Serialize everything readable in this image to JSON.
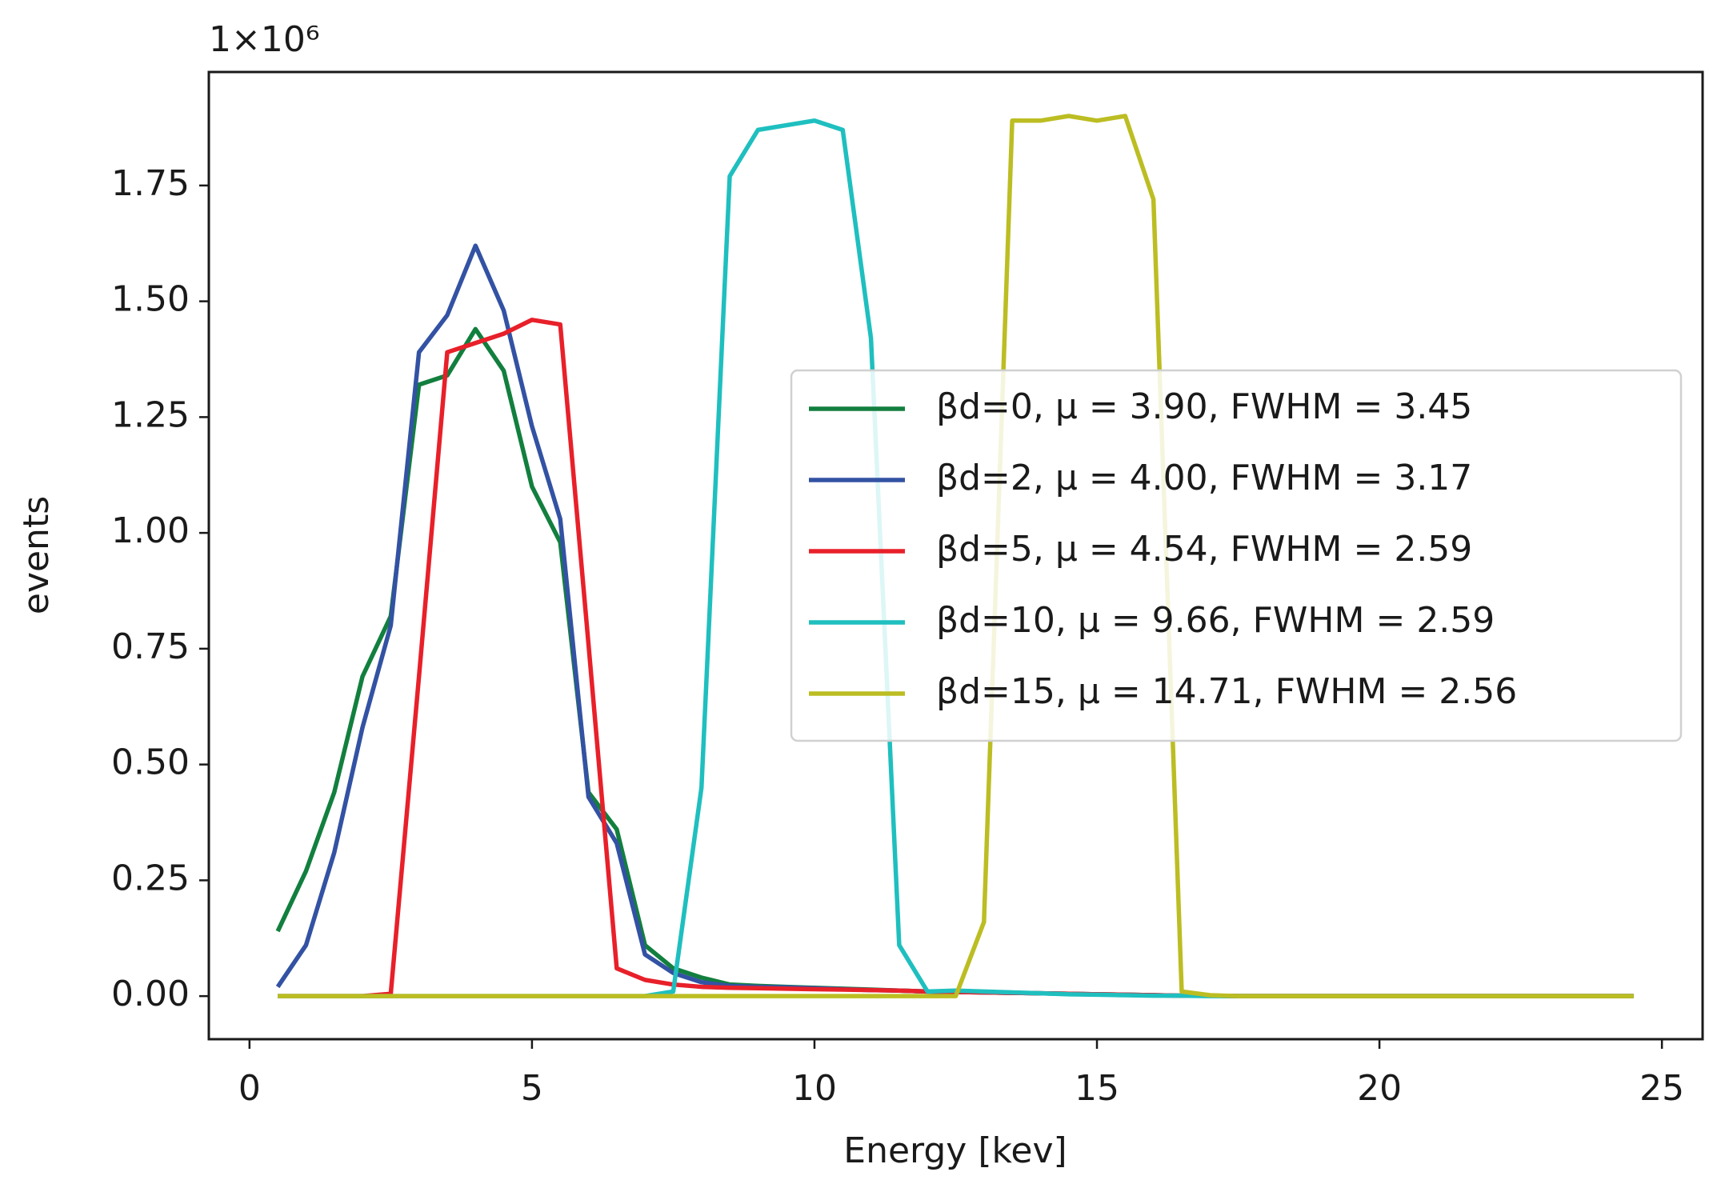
{
  "chart_data": {
    "type": "line",
    "xlabel": "Energy [kev]",
    "ylabel": "events",
    "offset_text": "1×10⁶",
    "x": [
      0.5,
      1,
      1.5,
      2,
      2.5,
      3,
      3.5,
      4,
      4.5,
      5,
      5.5,
      6,
      6.5,
      7,
      7.5,
      8,
      8.5,
      9,
      9.5,
      10,
      10.5,
      11,
      11.5,
      12,
      12.5,
      13,
      13.5,
      14,
      14.5,
      15,
      15.5,
      16,
      16.5,
      17,
      17.5,
      18,
      18.5,
      19,
      19.5,
      20,
      20.5,
      21,
      21.5,
      22,
      22.5,
      23,
      23.5,
      24,
      24.5
    ],
    "series": [
      {
        "name": "βd=0, μ = 3.90, FWHM = 3.45",
        "color": "#127f3e",
        "values": [
          0.14,
          0.27,
          0.44,
          0.69,
          0.82,
          1.32,
          1.34,
          1.44,
          1.35,
          1.1,
          0.98,
          0.44,
          0.36,
          0.11,
          0.06,
          0.04,
          0.025,
          0.022,
          0.02,
          0.018,
          0.016,
          0.014,
          0.012,
          0.01,
          0.009,
          0.008,
          0.007,
          0.006,
          0.005,
          0.004,
          0.003,
          0.002,
          0.001,
          0.001,
          0,
          0,
          0,
          0,
          0,
          0,
          0,
          0,
          0,
          0,
          0,
          0,
          0,
          0,
          0
        ]
      },
      {
        "name": "βd=2, μ = 4.00, FWHM = 3.17",
        "color": "#3352a3",
        "values": [
          0.02,
          0.11,
          0.31,
          0.58,
          0.8,
          1.39,
          1.47,
          1.62,
          1.48,
          1.23,
          1.03,
          0.43,
          0.33,
          0.09,
          0.05,
          0.03,
          0.022,
          0.02,
          0.019,
          0.017,
          0.015,
          0.013,
          0.012,
          0.01,
          0.009,
          0.008,
          0.007,
          0.006,
          0.005,
          0.004,
          0.003,
          0.002,
          0.001,
          0.001,
          0,
          0,
          0,
          0,
          0,
          0,
          0,
          0,
          0,
          0,
          0,
          0,
          0,
          0,
          0
        ]
      },
      {
        "name": "βd=5, μ = 4.54, FWHM = 2.59",
        "color": "#e8202a",
        "values": [
          0,
          0,
          0,
          0,
          0.005,
          0.69,
          1.39,
          1.41,
          1.43,
          1.46,
          1.45,
          0.76,
          0.06,
          0.035,
          0.025,
          0.02,
          0.018,
          0.017,
          0.016,
          0.015,
          0.014,
          0.013,
          0.012,
          0.01,
          0.009,
          0.008,
          0.007,
          0.006,
          0.005,
          0.004,
          0.003,
          0.002,
          0.001,
          0.001,
          0,
          0,
          0,
          0,
          0,
          0,
          0,
          0,
          0,
          0,
          0,
          0,
          0,
          0,
          0
        ]
      },
      {
        "name": "βd=10, μ = 9.66, FWHM = 2.59",
        "color": "#1fbfbf",
        "values": [
          0,
          0,
          0,
          0,
          0,
          0,
          0,
          0,
          0,
          0,
          0,
          0,
          0,
          0,
          0.01,
          0.45,
          1.77,
          1.87,
          1.88,
          1.89,
          1.87,
          1.42,
          0.11,
          0.01,
          0.012,
          0.01,
          0.008,
          0.006,
          0.004,
          0.003,
          0.002,
          0.001,
          0.001,
          0,
          0,
          0,
          0,
          0,
          0,
          0,
          0,
          0,
          0,
          0,
          0,
          0,
          0,
          0,
          0
        ]
      },
      {
        "name": "βd=15, μ = 14.71, FWHM = 2.56",
        "color": "#bcbd22",
        "values": [
          0,
          0,
          0,
          0,
          0,
          0,
          0,
          0,
          0,
          0,
          0,
          0,
          0,
          0,
          0,
          0,
          0,
          0,
          0,
          0,
          0,
          0,
          0,
          0,
          0,
          0.16,
          1.89,
          1.89,
          1.9,
          1.89,
          1.9,
          1.72,
          0.01,
          0.002,
          0,
          0,
          0,
          0,
          0,
          0,
          0,
          0,
          0,
          0,
          0,
          0,
          0,
          0,
          0
        ]
      }
    ],
    "xlim": [
      -0.72,
      25.72
    ],
    "xticks": [
      0,
      5,
      10,
      15,
      20,
      25
    ],
    "ylim": [
      -0.093,
      1.995
    ],
    "yticks": [
      {
        "value": 0,
        "label": "0.00"
      },
      {
        "value": 0.25,
        "label": "0.25"
      },
      {
        "value": 0.5,
        "label": "0.50"
      },
      {
        "value": 0.75,
        "label": "0.75"
      },
      {
        "value": 1,
        "label": "1.00"
      },
      {
        "value": 1.25,
        "label": "1.25"
      },
      {
        "value": 1.5,
        "label": "1.50"
      },
      {
        "value": 1.75,
        "label": "1.75"
      }
    ],
    "legend": "center right",
    "grid": false
  }
}
